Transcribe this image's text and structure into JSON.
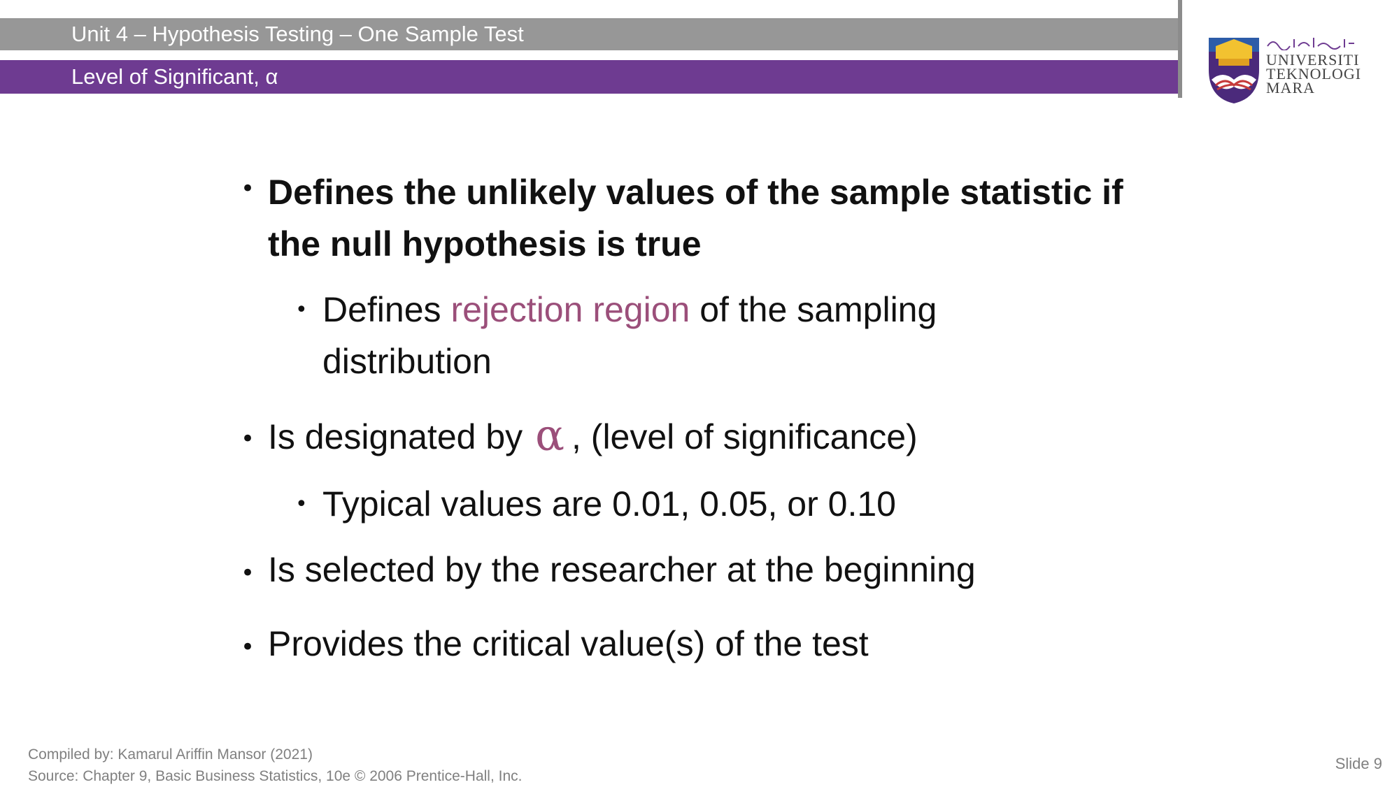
{
  "header": {
    "unit_title": "Unit 4 – Hypothesis Testing – One Sample Test",
    "topic_title": "Level of Significant, α",
    "colors": {
      "grey_bar": "#979797",
      "purple_bar": "#6e3b91",
      "accent": "#9b4f7a"
    }
  },
  "logo": {
    "name": "uitm-logo-icon",
    "line1": "UNIVERSITI",
    "line2": "TEKNOLOGI",
    "line3": "MARA"
  },
  "body": {
    "bullet1": "Defines the unlikely values of the sample statistic if the null hypothesis is true",
    "sub1_pre": "Defines ",
    "sub1_accent": "rejection region",
    "sub1_post": " of the sampling distribution",
    "bullet2_pre": "Is designated by",
    "bullet2_symbol": "α",
    "bullet2_post": ", (level of significance)",
    "sub2": "Typical values are 0.01, 0.05, or 0.10",
    "bullet3": "Is selected by the researcher at the beginning",
    "bullet4": "Provides the critical value(s) of the test"
  },
  "footer": {
    "compiled_by": "Compiled by: Kamarul Ariffin Mansor (2021)",
    "source": "Source: Chapter 9, Basic Business Statistics, 10e © 2006 Prentice-Hall, Inc.",
    "slide_number": "Slide 9"
  }
}
